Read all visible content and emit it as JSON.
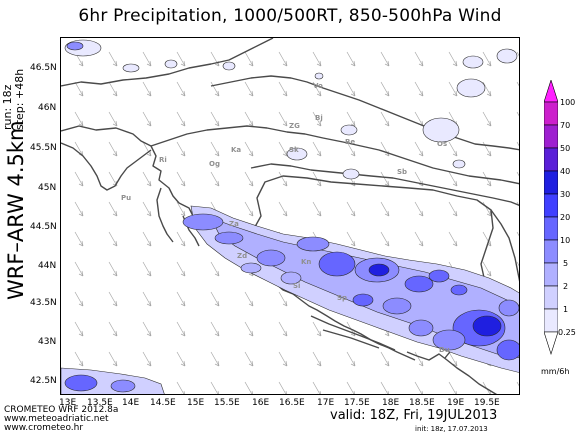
{
  "title": "6hr Precipitation, 1000/500RT, 850-500hPa Wind",
  "run_info": {
    "run": "run: 18z",
    "step": "step: +48h"
  },
  "model_label": "WRF–ARW 4.5km",
  "footer": {
    "org": "CROMETEO WRF 2012.8a",
    "url1": "www.meteoadriatic.net",
    "url2": "www.crometeo.hr"
  },
  "valid": "valid: 18Z, Fri, 19JUL2013",
  "init": "init: 18z, 17.07.2013",
  "colorbar": {
    "unit": "mm/6h",
    "levels": [
      "100",
      "70",
      "50",
      "40",
      "30",
      "20",
      "10",
      "5",
      "2",
      "1",
      "0.25"
    ],
    "colors": [
      "#ffffff",
      "#e9e9ff",
      "#d0d0ff",
      "#b0b0ff",
      "#8c8cff",
      "#6666ff",
      "#4040ff",
      "#1f1fe0",
      "#5a1fd8",
      "#9e1fd0",
      "#cc1fcc",
      "#ff20ff"
    ]
  },
  "axes": {
    "lat": [
      "46.5N",
      "46N",
      "45.5N",
      "45N",
      "44.5N",
      "44N",
      "43.5N",
      "43N",
      "42.5N"
    ],
    "lon": [
      "13E",
      "13.5E",
      "14E",
      "14.5E",
      "15E",
      "15.5E",
      "16E",
      "16.5E",
      "17E",
      "17.5E",
      "18E",
      "18.5E",
      "19E",
      "19.5E"
    ]
  },
  "cities": [
    "Vo",
    "ZG",
    "Bj",
    "Ka",
    "Sk",
    "Be",
    "Os",
    "Ri",
    "Og",
    "Sb",
    "Pu",
    "Za",
    "Zd",
    "Kn",
    "Si",
    "Du",
    "Sp"
  ],
  "colors": {
    "precip_light": "#e9e9ff",
    "precip_mid": "#6666ff",
    "precip_heavy": "#1f1fe0",
    "border": "#4a4a4a",
    "wind": "#a8a8a8"
  }
}
